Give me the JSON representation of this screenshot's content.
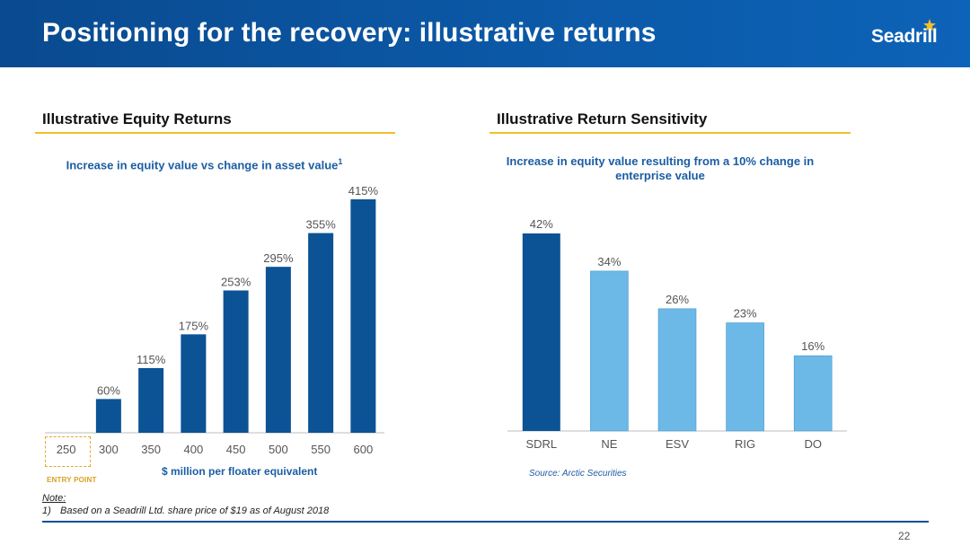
{
  "header": {
    "title": "Positioning for the recovery: illustrative returns",
    "logo_text": "Seadrill"
  },
  "left_panel": {
    "section_title": "Illustrative Equity Returns",
    "subtitle": "Increase in equity value vs change in asset value",
    "subtitle_footnote_ref": "1",
    "entry_point_label": "ENTRY POINT"
  },
  "right_panel": {
    "section_title": "Illustrative Return Sensitivity",
    "subtitle": "Increase in equity value resulting from a 10% change in enterprise value",
    "source": "Source: Arctic Securities"
  },
  "chart_data": [
    {
      "type": "bar",
      "title": "Increase in equity value vs change in asset value",
      "categories": [
        "250",
        "300",
        "350",
        "400",
        "450",
        "500",
        "550",
        "600"
      ],
      "values": [
        0,
        60,
        115,
        175,
        253,
        295,
        355,
        415
      ],
      "data_labels": [
        "",
        "60%",
        "115%",
        "175%",
        "253%",
        "295%",
        "355%",
        "415%"
      ],
      "xlabel": "$ million per floater equivalent",
      "ylabel": "",
      "ylim": [
        0,
        415
      ],
      "grid": false,
      "legend": "none",
      "bar_color": "#0b5394"
    },
    {
      "type": "bar",
      "title": "Increase in equity value resulting from a 10% change in enterprise value",
      "categories": [
        "SDRL",
        "NE",
        "ESV",
        "RIG",
        "DO"
      ],
      "values": [
        42,
        34,
        26,
        23,
        16
      ],
      "data_labels": [
        "42%",
        "34%",
        "26%",
        "23%",
        "16%"
      ],
      "xlabel": "",
      "ylabel": "",
      "ylim": [
        0,
        42
      ],
      "grid": false,
      "legend": "none",
      "highlight_color": "#0b5394",
      "bar_color": "#6cb8e6"
    }
  ],
  "notes": {
    "heading": "Note:",
    "items": [
      {
        "num": "1)",
        "text": "Based on a Seadrill Ltd. share price of $19 as of August 2018"
      }
    ]
  },
  "page_number": "22",
  "colors": {
    "header_blue": "#0b56a3",
    "accent_yellow": "#f2c02a",
    "text_blue": "#1b5da3",
    "dark_bar": "#0b5394",
    "light_bar": "#6cb8e6"
  }
}
